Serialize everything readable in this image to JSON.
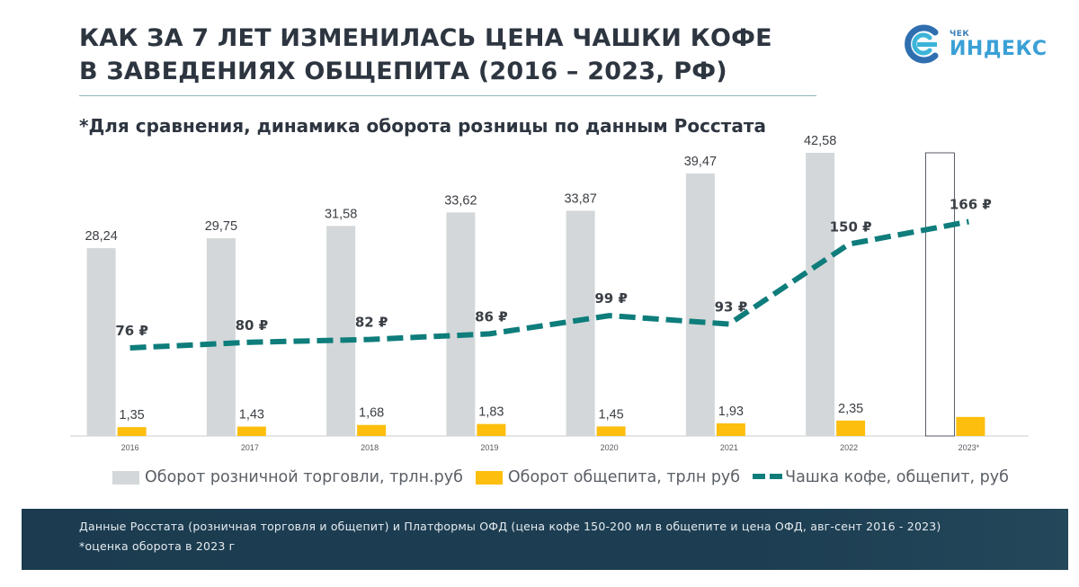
{
  "header": {
    "title_line1": "КАК ЗА 7 ЛЕТ ИЗМЕНИЛАСЬ ЦЕНА ЧАШКИ КОФЕ",
    "title_line2": "В ЗАВЕДЕНИЯХ ОБЩЕПИТА (2016 – 2023, РФ)",
    "subtitle": "*Для сравнения, динамика оборота розницы по данным Росстата"
  },
  "logo": {
    "small": "ЧЕК",
    "big": "ИНДЕКС"
  },
  "chart_data": {
    "type": "bar",
    "title": "КАК ЗА 7 ЛЕТ ИЗМЕНИЛАСЬ ЦЕНА ЧАШКИ КОФЕ В ЗАВЕДЕНИЯХ ОБЩЕПИТА (2016 – 2023, РФ)",
    "categories": [
      "2016",
      "2017",
      "2018",
      "2019",
      "2020",
      "2021",
      "2022",
      "2023*"
    ],
    "ylim": [
      0,
      45
    ],
    "series": [
      {
        "name": "Оборот розничной торговли, трлн.руб",
        "kind": "bar",
        "values": [
          28.24,
          29.75,
          31.58,
          33.62,
          33.87,
          39.47,
          42.58,
          42.58
        ],
        "labels": [
          "28,24",
          "29,75",
          "31,58",
          "33,62",
          "33,87",
          "39,47",
          "42,58",
          ""
        ],
        "color": "#d3d7d9"
      },
      {
        "name": "Оборот общепита, трлн руб",
        "kind": "bar",
        "values": [
          1.35,
          1.43,
          1.68,
          1.83,
          1.45,
          1.93,
          2.35,
          2.9
        ],
        "labels": [
          "1,35",
          "1,43",
          "1,68",
          "1,83",
          "1,45",
          "1,93",
          "2,35",
          ""
        ],
        "color": "#fdbe0e"
      },
      {
        "name": "Чашка кофе, общепит, руб",
        "kind": "line",
        "style": "dashed",
        "values": [
          76,
          80,
          82,
          86,
          99,
          93,
          150,
          166
        ],
        "labels": [
          "76 ₽",
          "80 ₽",
          "82 ₽",
          "86 ₽",
          "99 ₽",
          "93 ₽",
          "150 ₽",
          "166 ₽"
        ],
        "color": "#0e7d7b"
      }
    ]
  },
  "footer": {
    "line1": "Данные Росстата (розничная торговля и общепит) и Платформы ОФД (цена кофе 150-200 мл в общепите и цена ОФД, авг-сент 2016 - 2023)",
    "line2": "*оценка оборота в 2023 г"
  }
}
